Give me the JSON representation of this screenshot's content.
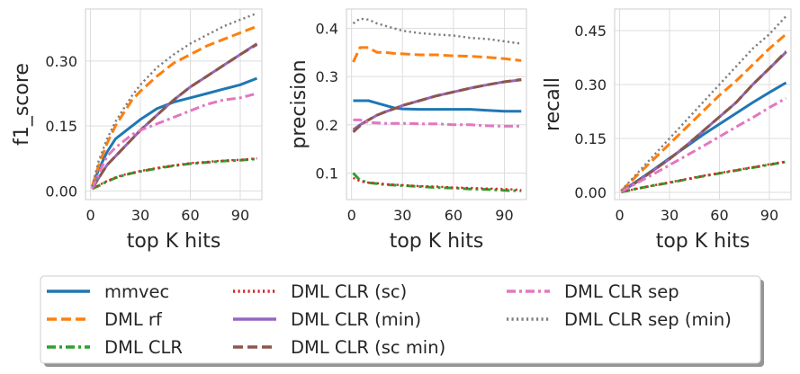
{
  "chart_data": [
    {
      "type": "line",
      "xlabel": "top K hits",
      "ylabel": "f1_score",
      "xlim": [
        -3,
        103
      ],
      "ylim": [
        -0.02,
        0.42
      ],
      "xticks": [
        "0",
        "30",
        "60",
        "90"
      ],
      "yticks": [
        "0.00",
        "0.15",
        "0.30"
      ],
      "grid": true,
      "x": [
        1,
        5,
        10,
        15,
        20,
        25,
        30,
        40,
        50,
        60,
        70,
        80,
        90,
        100
      ],
      "series": [
        {
          "name": "mmvec",
          "values": [
            0.01,
            0.05,
            0.09,
            0.12,
            0.135,
            0.15,
            0.165,
            0.19,
            0.205,
            0.215,
            0.225,
            0.235,
            0.245,
            0.26
          ]
        },
        {
          "name": "DML rf",
          "values": [
            0.01,
            0.06,
            0.11,
            0.15,
            0.18,
            0.21,
            0.23,
            0.265,
            0.295,
            0.315,
            0.335,
            0.35,
            0.365,
            0.38
          ]
        },
        {
          "name": "DML CLR",
          "values": [
            0.005,
            0.012,
            0.022,
            0.03,
            0.036,
            0.041,
            0.045,
            0.052,
            0.058,
            0.063,
            0.066,
            0.069,
            0.071,
            0.074
          ]
        },
        {
          "name": "DML CLR (sc)",
          "values": [
            0.005,
            0.013,
            0.023,
            0.031,
            0.037,
            0.042,
            0.046,
            0.053,
            0.059,
            0.064,
            0.067,
            0.07,
            0.072,
            0.075
          ]
        },
        {
          "name": "DML CLR (min)",
          "values": [
            0.005,
            0.03,
            0.06,
            0.08,
            0.1,
            0.12,
            0.14,
            0.175,
            0.21,
            0.24,
            0.265,
            0.29,
            0.315,
            0.34
          ]
        },
        {
          "name": "DML CLR (sc min)",
          "values": [
            0.005,
            0.03,
            0.06,
            0.08,
            0.1,
            0.12,
            0.14,
            0.175,
            0.21,
            0.24,
            0.265,
            0.29,
            0.315,
            0.338
          ]
        },
        {
          "name": "DML CLR sep",
          "values": [
            0.005,
            0.04,
            0.08,
            0.1,
            0.115,
            0.13,
            0.14,
            0.155,
            0.17,
            0.185,
            0.2,
            0.21,
            0.215,
            0.225
          ]
        },
        {
          "name": "DML CLR sep (min)",
          "values": [
            0.01,
            0.07,
            0.12,
            0.16,
            0.19,
            0.22,
            0.245,
            0.285,
            0.315,
            0.34,
            0.36,
            0.38,
            0.395,
            0.41
          ]
        }
      ]
    },
    {
      "type": "line",
      "xlabel": "top K hits",
      "ylabel": "precision",
      "xlim": [
        -3,
        103
      ],
      "ylim": [
        0.045,
        0.44
      ],
      "xticks": [
        "0",
        "30",
        "60",
        "90"
      ],
      "yticks": [
        "0.1",
        "0.2",
        "0.3",
        "0.4"
      ],
      "grid": true,
      "x": [
        1,
        5,
        10,
        15,
        20,
        25,
        30,
        40,
        50,
        60,
        70,
        80,
        90,
        100
      ],
      "series": [
        {
          "name": "mmvec",
          "values": [
            0.25,
            0.25,
            0.25,
            0.245,
            0.24,
            0.235,
            0.233,
            0.232,
            0.232,
            0.232,
            0.232,
            0.23,
            0.228,
            0.228
          ]
        },
        {
          "name": "DML rf",
          "values": [
            0.33,
            0.36,
            0.36,
            0.35,
            0.35,
            0.348,
            0.347,
            0.345,
            0.345,
            0.343,
            0.342,
            0.34,
            0.337,
            0.333
          ]
        },
        {
          "name": "DML CLR",
          "values": [
            0.1,
            0.085,
            0.08,
            0.078,
            0.076,
            0.075,
            0.074,
            0.072,
            0.07,
            0.069,
            0.067,
            0.066,
            0.064,
            0.063
          ]
        },
        {
          "name": "DML CLR (sc)",
          "values": [
            0.09,
            0.083,
            0.08,
            0.079,
            0.077,
            0.076,
            0.075,
            0.073,
            0.072,
            0.07,
            0.069,
            0.068,
            0.067,
            0.065
          ]
        },
        {
          "name": "DML CLR (min)",
          "values": [
            0.19,
            0.2,
            0.21,
            0.22,
            0.227,
            0.233,
            0.24,
            0.25,
            0.26,
            0.268,
            0.276,
            0.283,
            0.289,
            0.293
          ]
        },
        {
          "name": "DML CLR (sc min)",
          "values": [
            0.185,
            0.198,
            0.21,
            0.22,
            0.227,
            0.233,
            0.24,
            0.25,
            0.26,
            0.268,
            0.276,
            0.283,
            0.289,
            0.294
          ]
        },
        {
          "name": "DML CLR sep",
          "values": [
            0.21,
            0.21,
            0.205,
            0.204,
            0.203,
            0.203,
            0.203,
            0.202,
            0.202,
            0.2,
            0.2,
            0.198,
            0.197,
            0.197
          ]
        },
        {
          "name": "DML CLR sep (min)",
          "values": [
            0.41,
            0.42,
            0.418,
            0.41,
            0.405,
            0.4,
            0.395,
            0.39,
            0.387,
            0.385,
            0.38,
            0.378,
            0.373,
            0.368
          ]
        }
      ]
    },
    {
      "type": "line",
      "xlabel": "top K hits",
      "ylabel": "recall",
      "xlim": [
        -3,
        103
      ],
      "ylim": [
        -0.02,
        0.51
      ],
      "xticks": [
        "0",
        "30",
        "60",
        "90"
      ],
      "yticks": [
        "0.00",
        "0.15",
        "0.30",
        "0.45"
      ],
      "grid": true,
      "x": [
        1,
        10,
        20,
        30,
        40,
        50,
        60,
        70,
        80,
        90,
        100
      ],
      "series": [
        {
          "name": "mmvec",
          "values": [
            0.003,
            0.03,
            0.062,
            0.095,
            0.127,
            0.16,
            0.19,
            0.22,
            0.25,
            0.278,
            0.305
          ]
        },
        {
          "name": "DML rf",
          "values": [
            0.004,
            0.045,
            0.09,
            0.135,
            0.18,
            0.225,
            0.27,
            0.31,
            0.355,
            0.4,
            0.44
          ]
        },
        {
          "name": "DML CLR",
          "values": [
            0.001,
            0.01,
            0.019,
            0.027,
            0.036,
            0.045,
            0.053,
            0.061,
            0.069,
            0.077,
            0.085
          ]
        },
        {
          "name": "DML CLR (sc)",
          "values": [
            0.001,
            0.01,
            0.019,
            0.028,
            0.037,
            0.046,
            0.054,
            0.062,
            0.07,
            0.078,
            0.086
          ]
        },
        {
          "name": "DML CLR (min)",
          "values": [
            0.002,
            0.028,
            0.06,
            0.093,
            0.13,
            0.17,
            0.21,
            0.25,
            0.3,
            0.345,
            0.39
          ]
        },
        {
          "name": "DML CLR (sc min)",
          "values": [
            0.002,
            0.028,
            0.06,
            0.093,
            0.13,
            0.17,
            0.21,
            0.25,
            0.3,
            0.345,
            0.392
          ]
        },
        {
          "name": "DML CLR sep",
          "values": [
            0.002,
            0.025,
            0.05,
            0.076,
            0.102,
            0.128,
            0.155,
            0.182,
            0.208,
            0.236,
            0.262
          ]
        },
        {
          "name": "DML CLR sep (min)",
          "values": [
            0.005,
            0.05,
            0.1,
            0.15,
            0.2,
            0.25,
            0.3,
            0.35,
            0.4,
            0.44,
            0.49
          ]
        }
      ]
    }
  ],
  "legend": {
    "placement": "bottom-center",
    "entries": [
      {
        "label": "mmvec",
        "color": "#1f77b4",
        "dash": "solid"
      },
      {
        "label": "DML rf",
        "color": "#ff7f0e",
        "dash": "dashed"
      },
      {
        "label": "DML CLR",
        "color": "#2ca02c",
        "dash": "dashdot"
      },
      {
        "label": "DML CLR (sc)",
        "color": "#d62728",
        "dash": "dotted"
      },
      {
        "label": "DML CLR (min)",
        "color": "#9467bd",
        "dash": "solid"
      },
      {
        "label": "DML CLR (sc min)",
        "color": "#8c564b",
        "dash": "dashed"
      },
      {
        "label": "DML CLR sep",
        "color": "#e377c2",
        "dash": "dashdot"
      },
      {
        "label": "DML CLR sep (min)",
        "color": "#7f7f7f",
        "dash": "dotted"
      }
    ]
  }
}
